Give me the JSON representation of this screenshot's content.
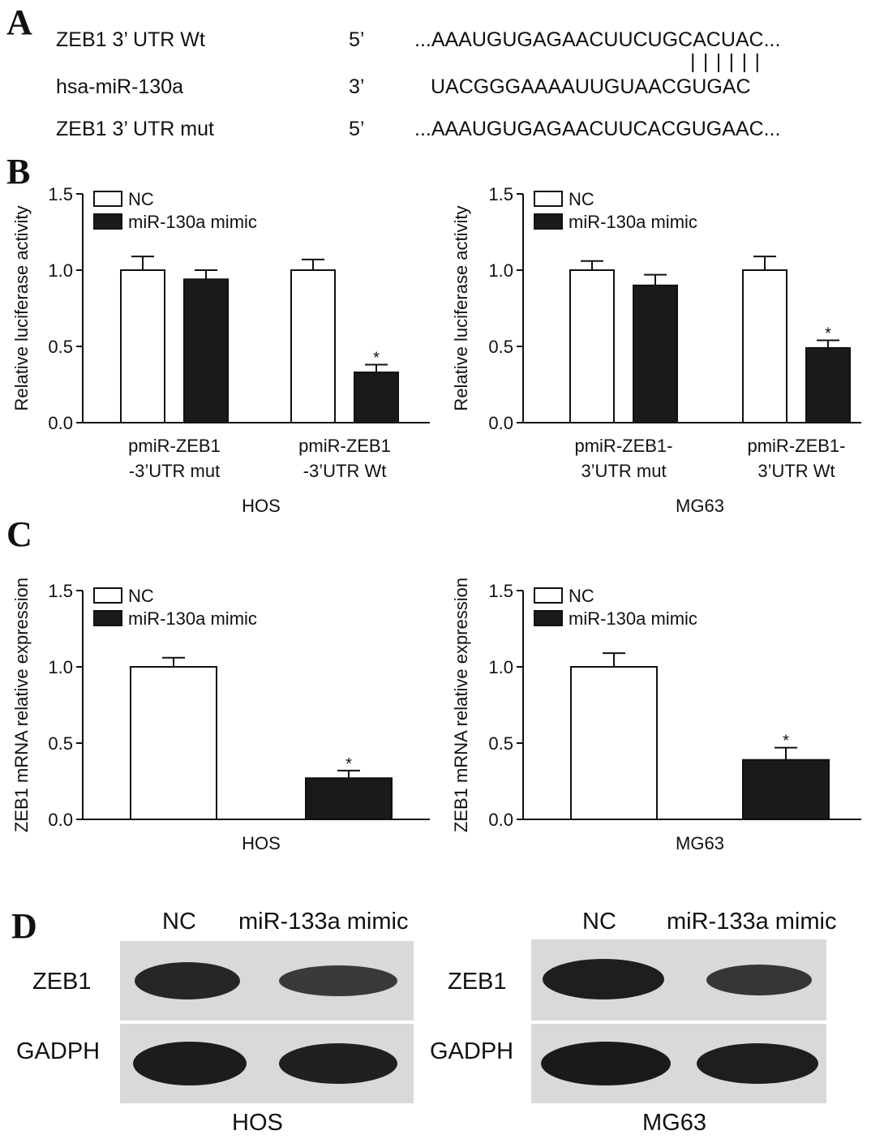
{
  "panels": {
    "a": "A",
    "b": "B",
    "c": "C",
    "d": "D"
  },
  "sequences": [
    {
      "name": "ZEB1 3’ UTR Wt",
      "end": "5’",
      "seq": "...AAAUGUGAGAACUUCUGCACUAC..."
    },
    {
      "name": "hsa-miR-130a",
      "end": "3’",
      "seq": "UACGGGAAAAUUGUAACGUGAC"
    },
    {
      "name": "ZEB1 3’ UTR mut",
      "end": "5’",
      "seq": "...AAAUGUGAGAACUUCACGUGAAC..."
    }
  ],
  "pairing": "||||||",
  "chart_data": [
    {
      "panel": "B",
      "type": "bar",
      "cell_line": "HOS",
      "ylabel": "Relative luciferase activity",
      "ylim": [
        0,
        1.5
      ],
      "yticks": [
        "0.0",
        "0.5",
        "1.0",
        "1.5"
      ],
      "categories": [
        [
          "pmiR-ZEB1",
          "-3’UTR mut"
        ],
        [
          "pmiR-ZEB1",
          "-3’UTR Wt"
        ]
      ],
      "series": [
        {
          "name": "NC",
          "color": "#ffffff",
          "values": [
            1.0,
            1.0
          ],
          "errors": [
            0.09,
            0.07
          ]
        },
        {
          "name": "miR-130a mimic",
          "color": "#1a1a1a",
          "values": [
            0.94,
            0.33
          ],
          "errors": [
            0.06,
            0.05
          ]
        }
      ],
      "significance": [
        "",
        "*"
      ],
      "legend": "top-left"
    },
    {
      "panel": "B",
      "type": "bar",
      "cell_line": "MG63",
      "ylabel": "Relative luciferase activity",
      "ylim": [
        0,
        1.5
      ],
      "yticks": [
        "0.0",
        "0.5",
        "1.0",
        "1.5"
      ],
      "categories": [
        [
          "pmiR-ZEB1-",
          "3’UTR mut"
        ],
        [
          "pmiR-ZEB1-",
          "3’UTR Wt"
        ]
      ],
      "series": [
        {
          "name": "NC",
          "color": "#ffffff",
          "values": [
            1.0,
            1.0
          ],
          "errors": [
            0.06,
            0.09
          ]
        },
        {
          "name": "miR-130a mimic",
          "color": "#1a1a1a",
          "values": [
            0.9,
            0.49
          ],
          "errors": [
            0.07,
            0.05
          ]
        }
      ],
      "significance": [
        "",
        "*"
      ],
      "legend": "top-left"
    },
    {
      "panel": "C",
      "type": "bar",
      "cell_line": "HOS",
      "ylabel": "ZEB1 mRNA relative expression",
      "ylim": [
        0,
        1.5
      ],
      "yticks": [
        "0.0",
        "0.5",
        "1.0",
        "1.5"
      ],
      "categories": [
        [
          "HOS"
        ]
      ],
      "series": [
        {
          "name": "NC",
          "color": "#ffffff",
          "values": [
            1.0
          ],
          "errors": [
            0.06
          ]
        },
        {
          "name": "miR-130a mimic",
          "color": "#1a1a1a",
          "values": [
            0.27
          ],
          "errors": [
            0.05
          ]
        }
      ],
      "significance": [
        "*"
      ],
      "legend": "top-left"
    },
    {
      "panel": "C",
      "type": "bar",
      "cell_line": "MG63",
      "ylabel": "ZEB1 mRNA relative expression",
      "ylim": [
        0,
        1.5
      ],
      "yticks": [
        "0.0",
        "0.5",
        "1.0",
        "1.5"
      ],
      "categories": [
        [
          "MG63"
        ]
      ],
      "series": [
        {
          "name": "NC",
          "color": "#ffffff",
          "values": [
            1.0
          ],
          "errors": [
            0.09
          ]
        },
        {
          "name": "miR-130a mimic",
          "color": "#1a1a1a",
          "values": [
            0.39
          ],
          "errors": [
            0.08
          ]
        }
      ],
      "significance": [
        "*"
      ],
      "legend": "top-left"
    }
  ],
  "western_blots": [
    {
      "cell_line": "HOS",
      "lanes": [
        "NC",
        "miR-133a mimic"
      ],
      "rows": [
        "ZEB1",
        "GADPH"
      ]
    },
    {
      "cell_line": "MG63",
      "lanes": [
        "NC",
        "miR-133a mimic"
      ],
      "rows": [
        "ZEB1",
        "GADPH"
      ]
    }
  ]
}
